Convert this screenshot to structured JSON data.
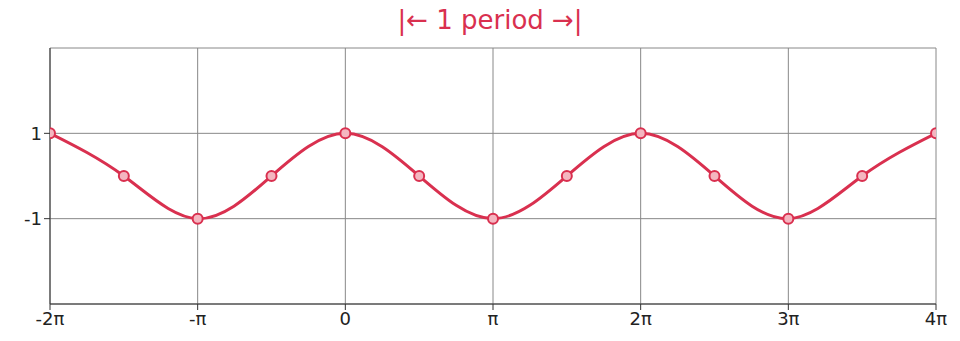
{
  "chart_data": {
    "type": "line",
    "title": "|← 1 period →|",
    "x": [
      -6.2832,
      -4.7124,
      -3.1416,
      -1.5708,
      0,
      1.5708,
      3.1416,
      4.7124,
      6.2832,
      7.854,
      9.4248,
      10.9956,
      12.5664
    ],
    "values": [
      1,
      0,
      -1,
      0,
      1,
      0,
      -1,
      0,
      1,
      0,
      -1,
      0,
      1
    ],
    "color": "#d9304f",
    "marker": "circle",
    "line_style": "solid",
    "xlim": [
      -6.2832,
      12.5664
    ],
    "xticks": [
      {
        "value": -6.2832,
        "label": "-2π"
      },
      {
        "value": -3.1416,
        "label": "-π"
      },
      0,
      {
        "value": 3.1416,
        "label": "π"
      },
      {
        "value": 6.2832,
        "label": "2π"
      },
      {
        "value": 9.4248,
        "label": "3π"
      },
      {
        "value": 12.5664,
        "label": "4π"
      }
    ],
    "ylim": [
      -3,
      3
    ],
    "yticks": [
      -1,
      1
    ],
    "grid": true
  }
}
